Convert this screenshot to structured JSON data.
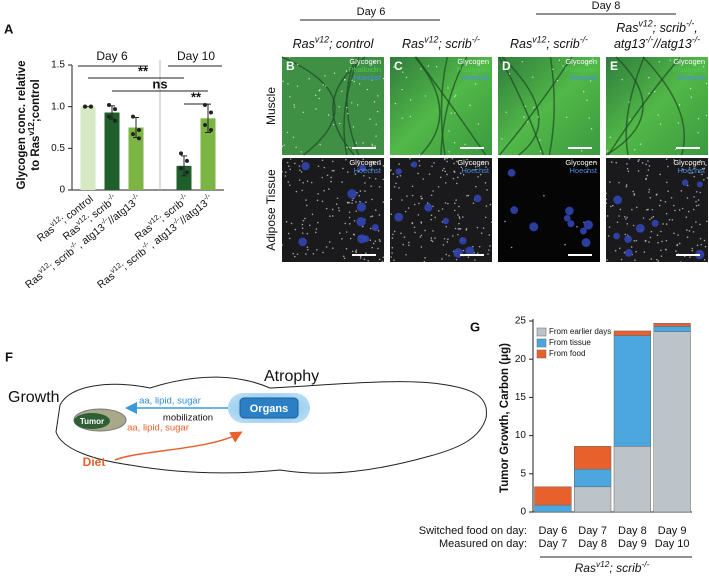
{
  "panels": {
    "a": "A",
    "b": "B",
    "c": "C",
    "d": "D",
    "e": "E",
    "f": "F",
    "g": "G"
  },
  "chart_data": [
    {
      "type": "bar",
      "ylabel": [
        [
          "Glycogen conc. relative"
        ],
        [
          "to Ras",
          "v12",
          ";control"
        ]
      ],
      "categories": [
        [
          "Ras",
          "v12",
          "; control"
        ],
        [
          "Ras",
          "v12",
          "; scrib",
          "-/-"
        ],
        [
          "Ras",
          "v12",
          "; scrib",
          "-/-",
          ", atg13",
          "-/-",
          "//atg13",
          "-/-"
        ],
        [
          "Ras",
          "v12",
          "; scrib",
          "-/-"
        ],
        [
          "Ras",
          "v12",
          "; scrib",
          "-/-",
          ", atg13",
          "-/-",
          "//atg13",
          "-/-"
        ]
      ],
      "values": [
        1.0,
        0.93,
        0.75,
        0.29,
        0.86
      ],
      "errors": [
        0.0,
        0.08,
        0.12,
        0.12,
        0.17
      ],
      "colors": [
        "#d6e9c4",
        "#1f5f2c",
        "#7db544",
        "#1f5f2c",
        "#7db544"
      ],
      "points": [
        [
          1.0,
          1.0,
          1.0,
          1.0
        ],
        [
          1.02,
          0.97,
          0.88,
          0.83
        ],
        [
          0.88,
          0.72,
          0.67,
          0.62
        ],
        [
          0.44,
          0.35,
          0.26,
          0.21
        ],
        [
          1.02,
          0.93,
          0.78,
          0.72
        ]
      ],
      "group_labels": [
        "Day 6",
        "Day 10"
      ],
      "annotations": [
        "**",
        "ns",
        "**"
      ],
      "ylim": [
        0,
        1.5
      ],
      "yticks": [
        0,
        0.5,
        {
          "value": 1,
          "label": "1.0"
        },
        1.5
      ]
    },
    {
      "type": "stacked_bar",
      "ylabel": "Tumor Growth, Carbon (μg)",
      "categories": [
        [
          "Day 6",
          "Day 7"
        ],
        [
          "Day 7",
          "Day 8"
        ],
        [
          "Day 8",
          "Day 9"
        ],
        [
          "Day 9",
          "Day 10"
        ]
      ],
      "category_rows": [
        "Switched food on day:",
        "Measured on day:"
      ],
      "series": [
        {
          "name": "From earlier days",
          "color": "#bcc3c9",
          "values": [
            0,
            3.3,
            8.6,
            23.6
          ]
        },
        {
          "name": "From tissue",
          "color": "#4ba7de",
          "values": [
            0.9,
            2.3,
            14.5,
            0.7
          ]
        },
        {
          "name": "From food",
          "color": "#e8602c",
          "values": [
            2.4,
            3.0,
            0.6,
            0.4
          ]
        }
      ],
      "xlabel": [
        "Ras",
        "v12",
        "; scrib",
        "-/-"
      ],
      "legend": "upper left",
      "ylim": [
        0,
        25
      ],
      "yticks": [
        0,
        5,
        10,
        15,
        20,
        25
      ]
    }
  ],
  "microscopy": {
    "days": [
      "Day 6",
      "Day 8"
    ],
    "genotypes": [
      [
        [
          "Ras",
          "v12",
          "; control"
        ]
      ],
      [
        [
          "Ras",
          "v12",
          "; scrib",
          "-/-"
        ]
      ],
      [
        [
          "Ras",
          "v12",
          "; scrib",
          "-/-"
        ]
      ],
      [
        [
          "Ras",
          "v12",
          "; scrib",
          "-/-",
          ","
        ],
        [
          "atg13",
          "-/-",
          "//atg13",
          "-/-"
        ]
      ]
    ],
    "rows": [
      "Muscle",
      "Adipose Tissue"
    ],
    "stains_muscle": [
      "Glycogen",
      "Phalloidin",
      "Hoechst"
    ],
    "stains_adipose": [
      "Glycogen",
      "Hoechst"
    ]
  },
  "diagram": {
    "growth": "Growth",
    "atrophy": "Atrophy",
    "tumor": "Tumor",
    "organs": "Organs",
    "from_organs": "aa, lipid, sugar",
    "mobilization": "mobilization",
    "from_diet": "aa, lipid, sugar",
    "diet": "Diet"
  }
}
